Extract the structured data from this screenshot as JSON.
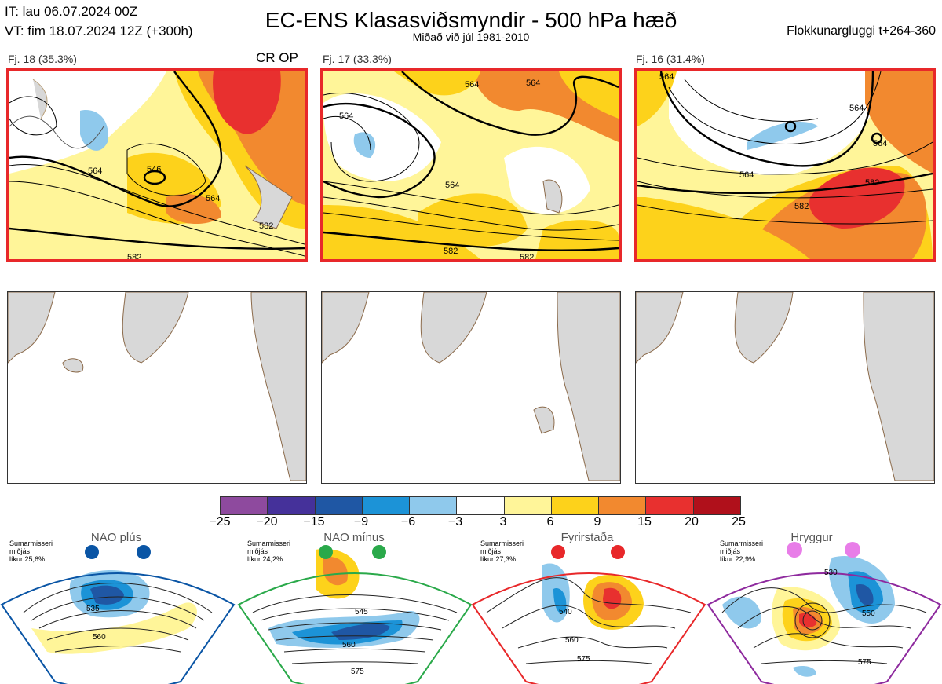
{
  "header": {
    "init_time": "IT: lau 06.07.2024 00Z",
    "valid_time": "VT: fim 18.07.2024 12Z  (+300h)",
    "title": "EC-ENS Klasasviðsmyndir - 500 hPa hæð",
    "subtitle": "Miðað við júl 1981-2010",
    "window": "Flokkunargluggi t+264-360"
  },
  "clusters": [
    {
      "label": "Fj. 18 (35.3%)",
      "tag": "CR OP",
      "selected": true,
      "contours": [
        "564",
        "546",
        "564",
        "582",
        "582"
      ]
    },
    {
      "label": "Fj. 17 (33.3%)",
      "tag": "",
      "selected": true,
      "contours": [
        "564",
        "564",
        "564",
        "564",
        "582",
        "582"
      ]
    },
    {
      "label": "Fj. 16 (31.4%)",
      "tag": "",
      "selected": true,
      "contours": [
        "564",
        "564",
        "564",
        "564",
        "582",
        "582"
      ]
    }
  ],
  "colorbar": {
    "ticks": [
      "−25",
      "−20",
      "−15",
      "−9",
      "−6",
      "−3",
      "3",
      "6",
      "9",
      "15",
      "20",
      "25"
    ],
    "colors": [
      "#8e4a9e",
      "#45319a",
      "#1f57a4",
      "#1c93d7",
      "#8fc9ec",
      "#ffffff",
      "#fff599",
      "#fdd21b",
      "#f2892f",
      "#e8302f",
      "#b0101b"
    ]
  },
  "regimes": [
    {
      "name": "NAO plús",
      "season": "Sumarmisseri",
      "avg": "miðjás",
      "prob": "líkur 25,6%",
      "color": "#0a55a5",
      "contours": [
        "535",
        "560"
      ]
    },
    {
      "name": "NAO mínus",
      "season": "Sumarmisseri",
      "avg": "miðjás",
      "prob": "líkur 24,2%",
      "color": "#2aa94a",
      "contours": [
        "545",
        "560",
        "575"
      ]
    },
    {
      "name": "Fyrirstaða",
      "season": "Sumarmisseri",
      "avg": "miðjás",
      "prob": "líkur 27,3%",
      "color": "#e8282a",
      "contours": [
        "540",
        "560",
        "575"
      ]
    },
    {
      "name": "Hryggur",
      "season": "Sumarmisseri",
      "avg": "miðjás",
      "prob": "líkur 22,9%",
      "color": "#8e2a9e",
      "contours": [
        "530",
        "550",
        "575"
      ]
    }
  ]
}
